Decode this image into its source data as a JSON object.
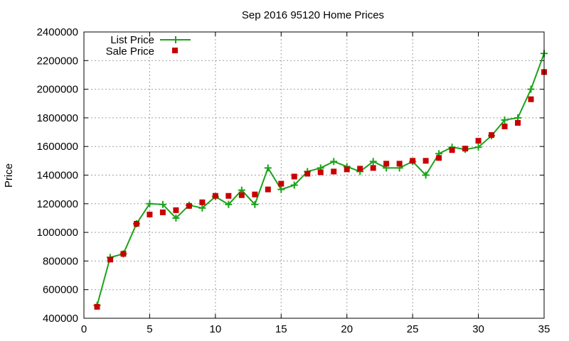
{
  "chart_data": {
    "type": "line",
    "title": "Sep 2016 95120 Home Prices",
    "xlabel": "",
    "ylabel": "Price",
    "xlim": [
      0,
      35
    ],
    "ylim": [
      400000,
      2400000
    ],
    "x_ticks": [
      "0",
      "5",
      "10",
      "15",
      "20",
      "25",
      "30",
      "35"
    ],
    "y_ticks": [
      "400000",
      "600000",
      "800000",
      "1000000",
      "1200000",
      "1400000",
      "1600000",
      "1800000",
      "2000000",
      "2200000",
      "2400000"
    ],
    "grid": true,
    "legend_position": "top-left",
    "x": [
      1,
      2,
      3,
      4,
      5,
      6,
      7,
      8,
      9,
      10,
      11,
      12,
      13,
      14,
      15,
      16,
      17,
      18,
      19,
      20,
      21,
      22,
      23,
      24,
      25,
      26,
      27,
      28,
      29,
      30,
      31,
      32,
      33,
      34,
      35
    ],
    "series": [
      {
        "name": "List Price",
        "style": "line-with-plus",
        "color": "#1aa31a",
        "values": [
          490000,
          825000,
          850000,
          1060000,
          1200000,
          1195000,
          1100000,
          1190000,
          1170000,
          1250000,
          1195000,
          1295000,
          1195000,
          1450000,
          1300000,
          1330000,
          1425000,
          1450000,
          1495000,
          1460000,
          1425000,
          1495000,
          1450000,
          1450000,
          1495000,
          1400000,
          1550000,
          1595000,
          1580000,
          1595000,
          1675000,
          1785000,
          1800000,
          2000000,
          2250000
        ]
      },
      {
        "name": "Sale Price",
        "style": "points-square",
        "color": "#c80000",
        "values": [
          480000,
          810000,
          850000,
          1060000,
          1125000,
          1140000,
          1155000,
          1185000,
          1210000,
          1255000,
          1255000,
          1260000,
          1265000,
          1300000,
          1340000,
          1390000,
          1410000,
          1420000,
          1425000,
          1440000,
          1445000,
          1450000,
          1480000,
          1480000,
          1500000,
          1500000,
          1520000,
          1575000,
          1585000,
          1640000,
          1680000,
          1740000,
          1765000,
          1930000,
          2120000
        ]
      }
    ]
  }
}
